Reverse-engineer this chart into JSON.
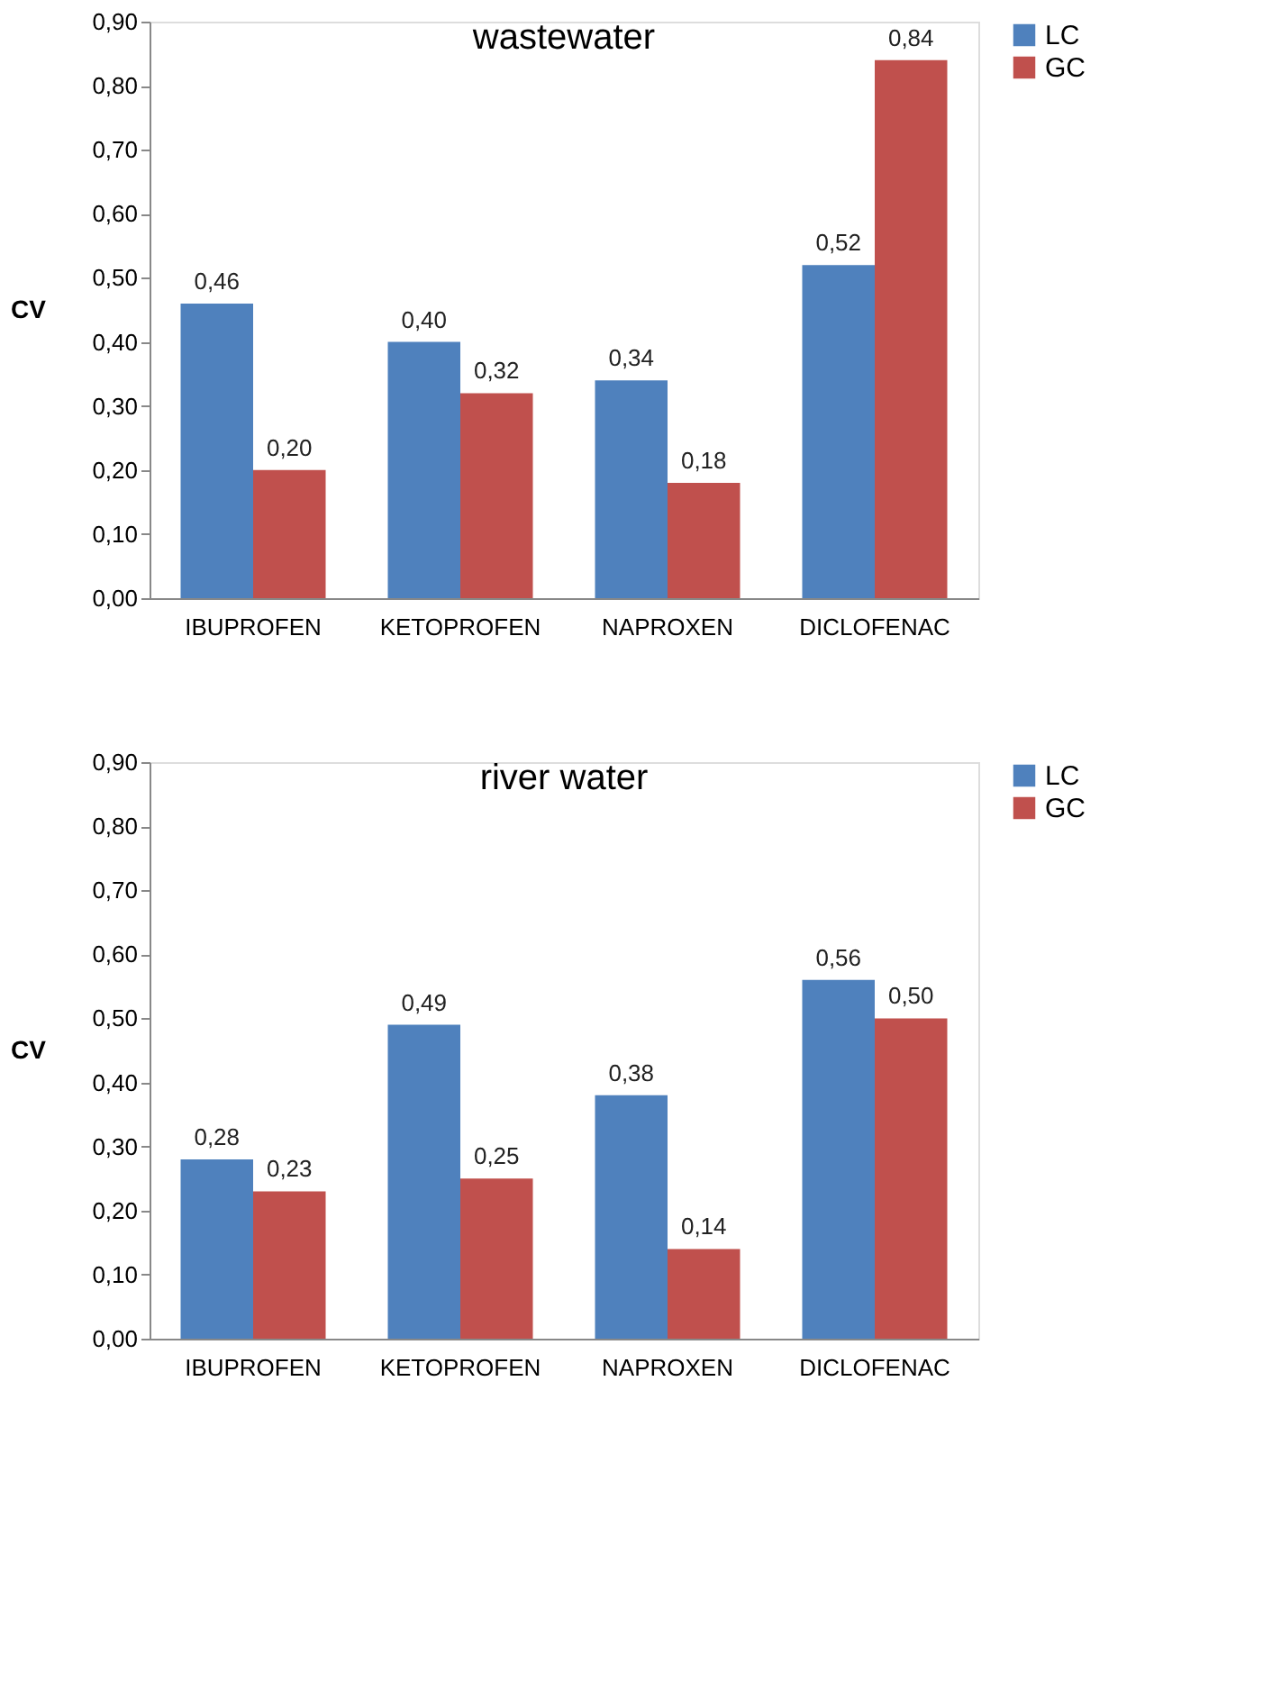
{
  "chart_data": [
    {
      "type": "bar",
      "title": "wastewater",
      "ylabel": "CV",
      "categories": [
        "IBUPROFEN",
        "KETOPROFEN",
        "NAPROXEN",
        "DICLOFENAC"
      ],
      "series": [
        {
          "name": "LC",
          "color": "#4f81bd",
          "values": [
            0.46,
            0.4,
            0.34,
            0.52
          ],
          "value_labels": [
            "0,46",
            "0,40",
            "0,34",
            "0,52"
          ]
        },
        {
          "name": "GC",
          "color": "#c0504d",
          "values": [
            0.2,
            0.32,
            0.18,
            0.84
          ],
          "value_labels": [
            "0,20",
            "0,32",
            "0,18",
            "0,84"
          ]
        }
      ],
      "ylim": [
        0,
        0.9
      ],
      "yticks": [
        {
          "value": 0,
          "label": "0,00"
        },
        {
          "value": 0.1,
          "label": "0,10"
        },
        {
          "value": 0.2,
          "label": "0,20"
        },
        {
          "value": 0.3,
          "label": "0,30"
        },
        {
          "value": 0.4,
          "label": "0,40"
        },
        {
          "value": 0.5,
          "label": "0,50"
        },
        {
          "value": 0.6,
          "label": "0,60"
        },
        {
          "value": 0.7,
          "label": "0,70"
        },
        {
          "value": 0.8,
          "label": "0,80"
        },
        {
          "value": 0.9,
          "label": "0,90"
        }
      ],
      "grid": false,
      "legend": "right"
    },
    {
      "type": "bar",
      "title": "river water",
      "ylabel": "CV",
      "categories": [
        "IBUPROFEN",
        "KETOPROFEN",
        "NAPROXEN",
        "DICLOFENAC"
      ],
      "series": [
        {
          "name": "LC",
          "color": "#4f81bd",
          "values": [
            0.28,
            0.49,
            0.38,
            0.56
          ],
          "value_labels": [
            "0,28",
            "0,49",
            "0,38",
            "0,56"
          ]
        },
        {
          "name": "GC",
          "color": "#c0504d",
          "values": [
            0.23,
            0.25,
            0.14,
            0.5
          ],
          "value_labels": [
            "0,23",
            "0,25",
            "0,14",
            "0,50"
          ]
        }
      ],
      "ylim": [
        0,
        0.9
      ],
      "yticks": [
        {
          "value": 0,
          "label": "0,00"
        },
        {
          "value": 0.1,
          "label": "0,10"
        },
        {
          "value": 0.2,
          "label": "0,20"
        },
        {
          "value": 0.3,
          "label": "0,30"
        },
        {
          "value": 0.4,
          "label": "0,40"
        },
        {
          "value": 0.5,
          "label": "0,50"
        },
        {
          "value": 0.6,
          "label": "0,60"
        },
        {
          "value": 0.7,
          "label": "0,70"
        },
        {
          "value": 0.8,
          "label": "0,80"
        },
        {
          "value": 0.9,
          "label": "0,90"
        }
      ],
      "grid": false,
      "legend": "right"
    }
  ]
}
